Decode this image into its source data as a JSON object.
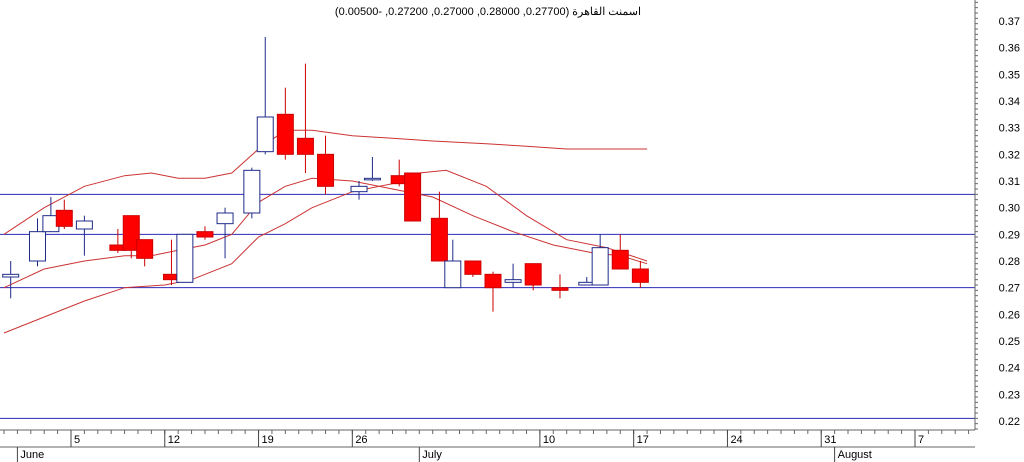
{
  "chart_data": {
    "type": "candlestick",
    "title": "اسمنت القاهرة (0.27700, 0.28000, 0.27000, 0.27200, -0.00500)",
    "ylim": [
      0.215,
      0.38
    ],
    "yticks": [
      0.22,
      0.23,
      0.24,
      0.25,
      0.26,
      0.27,
      0.28,
      0.29,
      0.3,
      0.31,
      0.32,
      0.33,
      0.34,
      0.35,
      0.36,
      0.37
    ],
    "ytick_labels": [
      "0.22",
      "0.23",
      "0.24",
      "0.25",
      "0.26",
      "0.27",
      "0.28",
      "0.29",
      "0.30",
      "0.31",
      "0.32",
      "0.33",
      "0.34",
      "0.35",
      "0.36",
      "0.37"
    ],
    "months": [
      {
        "label": "June",
        "day": 1
      },
      {
        "label": "July",
        "day": 31
      },
      {
        "label": "August",
        "day": 62
      }
    ],
    "week_ticks": [
      {
        "label": "5",
        "day": 5
      },
      {
        "label": "12",
        "day": 12
      },
      {
        "label": "19",
        "day": 19
      },
      {
        "label": "26",
        "day": 26
      },
      {
        "label": "10",
        "day": 40
      },
      {
        "label": "17",
        "day": 47
      },
      {
        "label": "24",
        "day": 54
      },
      {
        "label": "31",
        "day": 61
      },
      {
        "label": "7",
        "day": 68
      }
    ],
    "x_range": [
      0,
      75
    ],
    "horizontal_lines": [
      0.305,
      0.29,
      0.27,
      0.221
    ],
    "candles": [
      {
        "day": 0.5,
        "open": 0.274,
        "high": 0.28,
        "low": 0.266,
        "close": 0.275
      },
      {
        "day": 2.5,
        "open": 0.28,
        "high": 0.296,
        "low": 0.278,
        "close": 0.291
      },
      {
        "day": 3.5,
        "open": 0.291,
        "high": 0.304,
        "low": 0.291,
        "close": 0.297
      },
      {
        "day": 4.5,
        "open": 0.299,
        "high": 0.303,
        "low": 0.292,
        "close": 0.293
      },
      {
        "day": 6.0,
        "open": 0.292,
        "high": 0.297,
        "low": 0.282,
        "close": 0.295
      },
      {
        "day": 8.5,
        "open": 0.286,
        "high": 0.292,
        "low": 0.283,
        "close": 0.284
      },
      {
        "day": 9.5,
        "open": 0.297,
        "high": 0.297,
        "low": 0.281,
        "close": 0.284
      },
      {
        "day": 10.5,
        "open": 0.288,
        "high": 0.288,
        "low": 0.278,
        "close": 0.281
      },
      {
        "day": 12.5,
        "open": 0.275,
        "high": 0.288,
        "low": 0.271,
        "close": 0.273
      },
      {
        "day": 13.5,
        "open": 0.272,
        "high": 0.29,
        "low": 0.272,
        "close": 0.29
      },
      {
        "day": 15.0,
        "open": 0.291,
        "high": 0.293,
        "low": 0.288,
        "close": 0.289
      },
      {
        "day": 16.5,
        "open": 0.294,
        "high": 0.3,
        "low": 0.281,
        "close": 0.298
      },
      {
        "day": 18.5,
        "open": 0.298,
        "high": 0.315,
        "low": 0.296,
        "close": 0.314
      },
      {
        "day": 19.5,
        "open": 0.321,
        "high": 0.364,
        "low": 0.32,
        "close": 0.334
      },
      {
        "day": 21.0,
        "open": 0.335,
        "high": 0.345,
        "low": 0.318,
        "close": 0.32
      },
      {
        "day": 22.5,
        "open": 0.326,
        "high": 0.354,
        "low": 0.313,
        "close": 0.32
      },
      {
        "day": 24.0,
        "open": 0.32,
        "high": 0.327,
        "low": 0.305,
        "close": 0.308
      },
      {
        "day": 26.5,
        "open": 0.306,
        "high": 0.31,
        "low": 0.303,
        "close": 0.308
      },
      {
        "day": 27.5,
        "open": 0.311,
        "high": 0.319,
        "low": 0.31,
        "close": 0.311
      },
      {
        "day": 29.5,
        "open": 0.312,
        "high": 0.318,
        "low": 0.308,
        "close": 0.309
      },
      {
        "day": 30.5,
        "open": 0.313,
        "high": 0.313,
        "low": 0.295,
        "close": 0.295
      },
      {
        "day": 32.5,
        "open": 0.296,
        "high": 0.306,
        "low": 0.28,
        "close": 0.28
      },
      {
        "day": 33.5,
        "open": 0.27,
        "high": 0.288,
        "low": 0.27,
        "close": 0.28
      },
      {
        "day": 35.0,
        "open": 0.28,
        "high": 0.28,
        "low": 0.274,
        "close": 0.275
      },
      {
        "day": 36.5,
        "open": 0.275,
        "high": 0.276,
        "low": 0.261,
        "close": 0.27
      },
      {
        "day": 38.0,
        "open": 0.272,
        "high": 0.279,
        "low": 0.27,
        "close": 0.273
      },
      {
        "day": 39.5,
        "open": 0.279,
        "high": 0.279,
        "low": 0.269,
        "close": 0.271
      },
      {
        "day": 41.5,
        "open": 0.27,
        "high": 0.275,
        "low": 0.266,
        "close": 0.269
      },
      {
        "day": 43.5,
        "open": 0.271,
        "high": 0.274,
        "low": 0.271,
        "close": 0.272
      },
      {
        "day": 44.5,
        "open": 0.271,
        "high": 0.29,
        "low": 0.271,
        "close": 0.285
      },
      {
        "day": 46.0,
        "open": 0.284,
        "high": 0.29,
        "low": 0.277,
        "close": 0.277
      },
      {
        "day": 47.5,
        "open": 0.277,
        "high": 0.28,
        "low": 0.27,
        "close": 0.272
      }
    ],
    "bollinger": {
      "upper": [
        [
          0,
          0.29
        ],
        [
          3,
          0.3
        ],
        [
          6,
          0.308
        ],
        [
          9,
          0.312
        ],
        [
          11,
          0.313
        ],
        [
          13,
          0.311
        ],
        [
          15,
          0.311
        ],
        [
          17,
          0.313
        ],
        [
          19,
          0.322
        ],
        [
          21,
          0.329
        ],
        [
          23,
          0.329
        ],
        [
          26,
          0.327
        ],
        [
          29,
          0.326
        ],
        [
          32,
          0.325
        ],
        [
          36,
          0.324
        ],
        [
          39,
          0.323
        ],
        [
          42,
          0.322
        ],
        [
          45,
          0.322
        ],
        [
          48,
          0.322
        ]
      ],
      "middle": [
        [
          0,
          0.27
        ],
        [
          3,
          0.277
        ],
        [
          6,
          0.28
        ],
        [
          9,
          0.282
        ],
        [
          11,
          0.282
        ],
        [
          13,
          0.284
        ],
        [
          15,
          0.286
        ],
        [
          17,
          0.29
        ],
        [
          19,
          0.302
        ],
        [
          21,
          0.308
        ],
        [
          23,
          0.311
        ],
        [
          26,
          0.31
        ],
        [
          29,
          0.307
        ],
        [
          32,
          0.304
        ],
        [
          35,
          0.297
        ],
        [
          38,
          0.291
        ],
        [
          41,
          0.286
        ],
        [
          44,
          0.283
        ],
        [
          46,
          0.282
        ],
        [
          48,
          0.279
        ]
      ],
      "lower": [
        [
          0,
          0.253
        ],
        [
          3,
          0.259
        ],
        [
          6,
          0.265
        ],
        [
          9,
          0.27
        ],
        [
          12,
          0.271
        ],
        [
          14,
          0.273
        ],
        [
          17,
          0.279
        ],
        [
          19,
          0.289
        ],
        [
          21,
          0.294
        ],
        [
          23,
          0.3
        ],
        [
          26,
          0.306
        ],
        [
          29,
          0.309
        ],
        [
          31,
          0.313
        ],
        [
          33,
          0.314
        ],
        [
          36,
          0.308
        ],
        [
          39,
          0.297
        ],
        [
          42,
          0.288
        ],
        [
          45,
          0.285
        ],
        [
          48,
          0.28
        ]
      ]
    }
  }
}
